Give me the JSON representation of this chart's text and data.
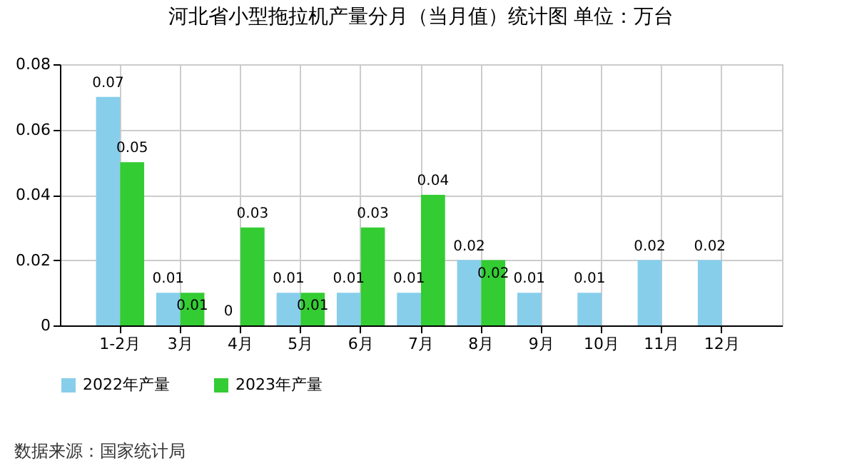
{
  "chart_data": {
    "type": "bar",
    "title": "河北省小型拖拉机产量分月（当月值）统计图 单位：万台",
    "categories": [
      "1-2月",
      "3月",
      "4月",
      "5月",
      "6月",
      "7月",
      "8月",
      "9月",
      "10月",
      "11月",
      "12月"
    ],
    "series": [
      {
        "name": "2022年产量",
        "color": "#87ceeb",
        "values": [
          0.07,
          0.01,
          0,
          0.01,
          0.01,
          0.01,
          0.02,
          0.01,
          0.01,
          0.02,
          0.02
        ]
      },
      {
        "name": "2023年产量",
        "color": "#33cc33",
        "values": [
          0.05,
          0.01,
          0.03,
          0.01,
          0.03,
          0.04,
          0.02,
          null,
          null,
          null,
          null
        ]
      }
    ],
    "ylim": [
      0,
      0.08
    ],
    "yticks": [
      {
        "value": 0,
        "label": "0"
      },
      0.02,
      0.04,
      0.06,
      0.08
    ],
    "grid": true,
    "legend": "bottom",
    "data_labels": true,
    "annotations": [
      "数据来源：国家统计局"
    ]
  }
}
